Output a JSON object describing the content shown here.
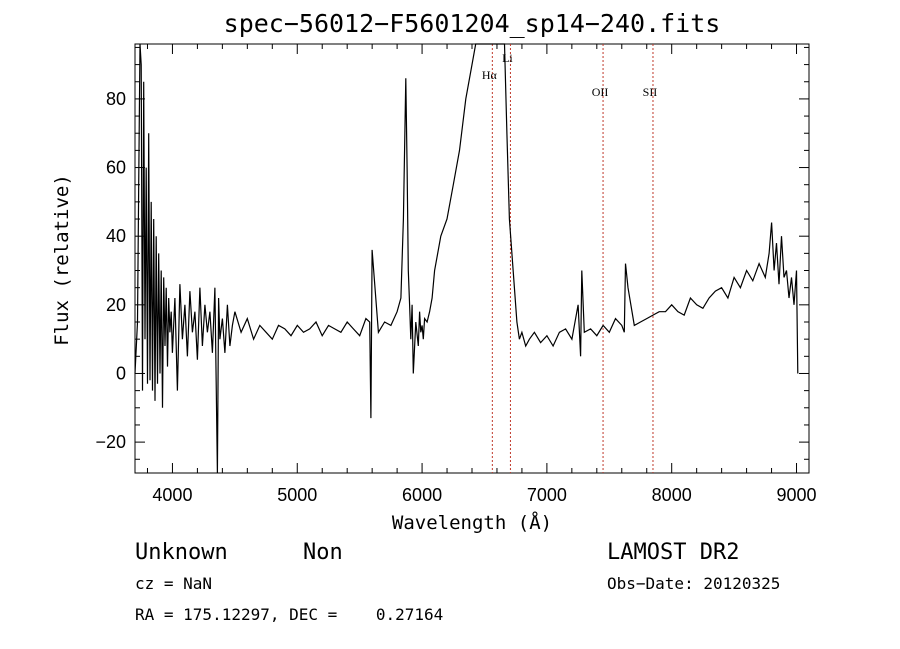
{
  "chart_data": {
    "type": "line",
    "title": "spec−56012−F5601204_sp14−240.fits",
    "xlabel": "Wavelength (Å)",
    "ylabel": "Flux (relative)",
    "xlim": [
      3700,
      9100
    ],
    "ylim": [
      -29,
      96
    ],
    "xticks": [
      4000,
      5000,
      6000,
      7000,
      8000,
      9000
    ],
    "yticks": [
      -20,
      0,
      20,
      40,
      60,
      80
    ],
    "ytick_labels": [
      "−20",
      "0",
      "20",
      "40",
      "60",
      "80"
    ],
    "series": [
      {
        "x": [
          3700,
          3720,
          3730,
          3740,
          3750,
          3760,
          3770,
          3780,
          3790,
          3800,
          3810,
          3820,
          3830,
          3840,
          3850,
          3860,
          3870,
          3880,
          3890,
          3900,
          3910,
          3920,
          3930,
          3940,
          3950,
          3960,
          3970,
          3980,
          3990,
          4000,
          4020,
          4040,
          4060,
          4080,
          4100,
          4120,
          4140,
          4160,
          4180,
          4200,
          4220,
          4240,
          4260,
          4280,
          4300,
          4320,
          4340,
          4360,
          4370,
          4380,
          4400,
          4420,
          4440,
          4460,
          4480,
          4500,
          4550,
          4600,
          4650,
          4700,
          4750,
          4800,
          4850,
          4900,
          4950,
          5000,
          5050,
          5100,
          5150,
          5200,
          5250,
          5300,
          5350,
          5400,
          5450,
          5500,
          5550,
          5580,
          5590,
          5600,
          5650,
          5700,
          5750,
          5800,
          5830,
          5850,
          5870,
          5880,
          5890,
          5900,
          5910,
          5920,
          5930,
          5950,
          5970,
          5980,
          5990,
          6000,
          6010,
          6020,
          6040,
          6060,
          6080,
          6100,
          6150,
          6200,
          6250,
          6300,
          6350,
          6400,
          6430,
          6450,
          6500,
          6520,
          6560,
          6580,
          6620,
          6660,
          6680,
          6700,
          6720,
          6740,
          6760,
          6780,
          6800,
          6830,
          6860,
          6900,
          6950,
          7000,
          7050,
          7100,
          7150,
          7200,
          7250,
          7270,
          7280,
          7300,
          7350,
          7400,
          7450,
          7500,
          7550,
          7600,
          7620,
          7630,
          7650,
          7700,
          7750,
          7800,
          7850,
          7900,
          7950,
          8000,
          8050,
          8100,
          8150,
          8200,
          8250,
          8300,
          8350,
          8400,
          8450,
          8500,
          8550,
          8600,
          8650,
          8700,
          8750,
          8780,
          8800,
          8820,
          8840,
          8860,
          8880,
          8900,
          8920,
          8940,
          8960,
          8980,
          9000,
          9010
        ],
        "y": [
          0,
          15,
          55,
          96,
          90,
          -5,
          85,
          10,
          60,
          -3,
          70,
          -2,
          50,
          -5,
          45,
          -8,
          40,
          -3,
          35,
          0,
          30,
          -10,
          28,
          8,
          25,
          2,
          22,
          12,
          18,
          6,
          22,
          -5,
          26,
          10,
          20,
          5,
          24,
          12,
          18,
          4,
          25,
          8,
          20,
          12,
          18,
          6,
          25,
          -29,
          22,
          10,
          16,
          6,
          20,
          8,
          14,
          18,
          12,
          16,
          10,
          14,
          12,
          10,
          14,
          13,
          11,
          14,
          12,
          13,
          15,
          11,
          14,
          13,
          12,
          15,
          13,
          11,
          16,
          15,
          -13,
          36,
          12,
          15,
          14,
          18,
          22,
          45,
          86,
          60,
          30,
          20,
          10,
          20,
          0,
          15,
          8,
          18,
          12,
          14,
          10,
          16,
          15,
          18,
          22,
          30,
          40,
          45,
          55,
          65,
          80,
          90,
          96,
          96,
          96,
          96,
          96,
          96,
          96,
          96,
          70,
          45,
          35,
          25,
          15,
          10,
          12,
          8,
          10,
          12,
          9,
          11,
          8,
          12,
          13,
          10,
          20,
          5,
          30,
          12,
          13,
          11,
          14,
          12,
          16,
          14,
          12,
          32,
          25,
          14,
          15,
          16,
          17,
          18,
          18,
          20,
          18,
          17,
          22,
          20,
          19,
          22,
          24,
          25,
          22,
          28,
          25,
          30,
          27,
          32,
          28,
          35,
          44,
          30,
          38,
          26,
          40,
          28,
          30,
          22,
          28,
          20,
          30,
          0
        ]
      }
    ],
    "reference_lines": [
      {
        "label": "Hα",
        "x": 6563
      },
      {
        "label": "Li",
        "x": 6708
      },
      {
        "label": "OII",
        "x": 7450
      },
      {
        "label": "SII",
        "x": 7850
      }
    ]
  },
  "info": {
    "class_label": "Unknown",
    "subclass_label": "Non",
    "survey": "LAMOST DR2",
    "cz": "cz = NaN",
    "obs_date": "Obs−Date: 20120325",
    "coords": "RA = 175.12297, DEC =    0.27164"
  }
}
